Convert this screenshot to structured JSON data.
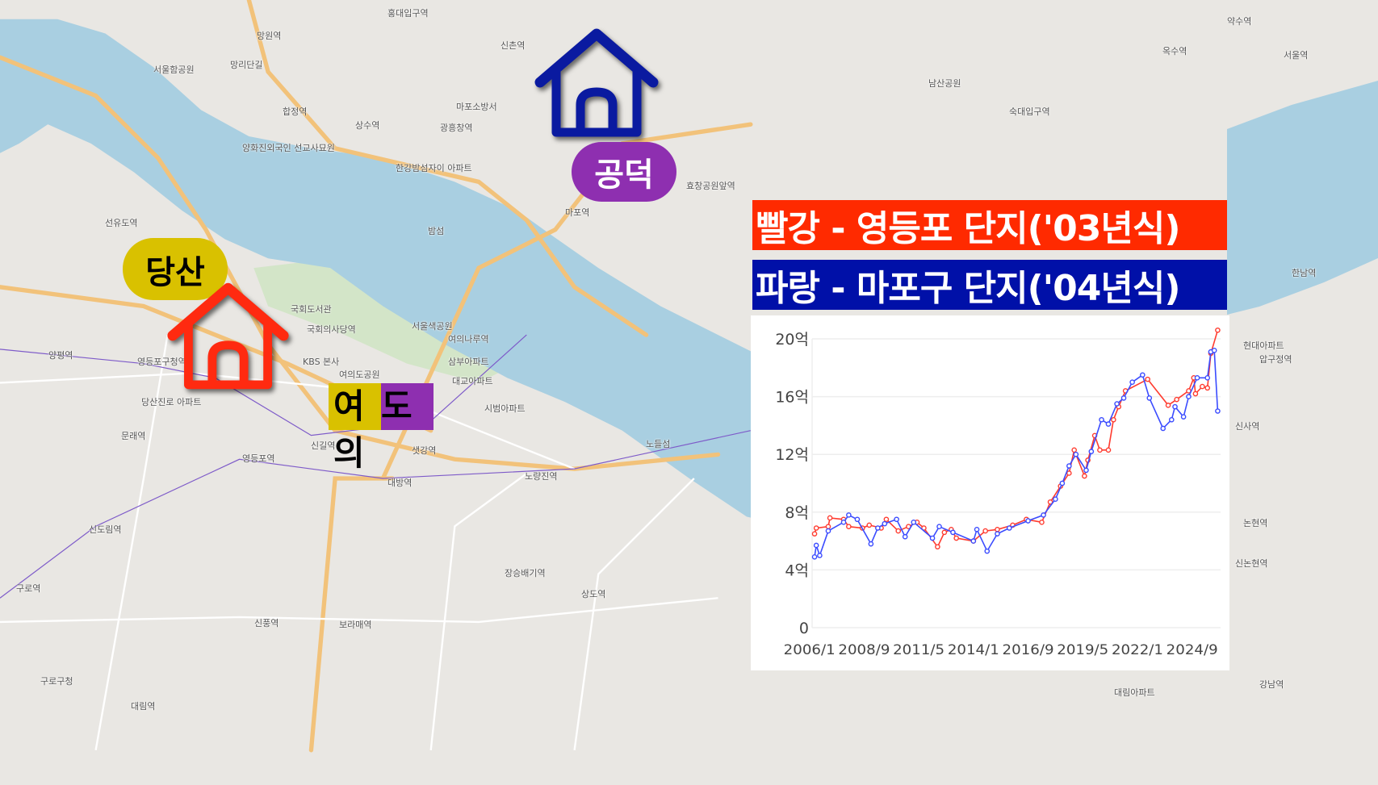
{
  "map": {
    "colors": {
      "land": "#e9e7e3",
      "river": "#a9cfe1",
      "park": "#cfe3c4",
      "road": "#f2c27a"
    },
    "labels": [
      {
        "text": "망원역"
      },
      {
        "text": "망리단길"
      },
      {
        "text": "서울함공원"
      },
      {
        "text": "합정역"
      },
      {
        "text": "상수역"
      },
      {
        "text": "광흥창역"
      },
      {
        "text": "마포소방서"
      },
      {
        "text": "양화진외국인 선교사묘원"
      },
      {
        "text": "한강밤섬자이 아파트"
      },
      {
        "text": "밤섬"
      },
      {
        "text": "국회도서관"
      },
      {
        "text": "국회의사당역"
      },
      {
        "text": "KBS 본사"
      },
      {
        "text": "여의도공원"
      },
      {
        "text": "서울색공원"
      },
      {
        "text": "여의나루역"
      },
      {
        "text": "마포역"
      },
      {
        "text": "삼부아파트"
      },
      {
        "text": "시범아파트"
      },
      {
        "text": "대교아파트"
      },
      {
        "text": "샛강역"
      },
      {
        "text": "신길역"
      },
      {
        "text": "영등포역"
      },
      {
        "text": "대방역"
      },
      {
        "text": "노량진역"
      },
      {
        "text": "신도림역"
      },
      {
        "text": "구로역"
      },
      {
        "text": "보라매역"
      },
      {
        "text": "신풍역"
      },
      {
        "text": "대림역"
      },
      {
        "text": "구로구청"
      },
      {
        "text": "노들섬"
      },
      {
        "text": "상도역"
      },
      {
        "text": "장승배기역"
      },
      {
        "text": "영등포구청역"
      },
      {
        "text": "양평역"
      },
      {
        "text": "선유도역"
      },
      {
        "text": "문래역"
      },
      {
        "text": "당산진로 아파트"
      },
      {
        "text": "대림아파트"
      },
      {
        "text": "효창공원앞역"
      },
      {
        "text": "홍대입구역"
      },
      {
        "text": "신촌역"
      },
      {
        "text": "숙대입구역"
      },
      {
        "text": "서울역"
      },
      {
        "text": "남산공원"
      },
      {
        "text": "한남역"
      },
      {
        "text": "옥수역"
      },
      {
        "text": "약수역"
      },
      {
        "text": "현대아파트"
      },
      {
        "text": "압구정역"
      },
      {
        "text": "신사역"
      },
      {
        "text": "논현역"
      },
      {
        "text": "신논현역"
      },
      {
        "text": "강남역"
      }
    ]
  },
  "markers": {
    "gongdeok": {
      "label": "공덕",
      "house_color": "#0a1aa0",
      "pill_color": "#8e2fb0",
      "text_color": "#ffffff",
      "icon": "house-icon"
    },
    "dangsan": {
      "label": "당산",
      "house_color": "#ff2a10",
      "pill_color": "#d9c100",
      "text_color": "#000000",
      "icon": "house-icon"
    },
    "yeouido": {
      "label_part1": "여의",
      "label_part2": "도",
      "color1": "#d9c100",
      "color2": "#8e2fb0",
      "text_color": "#000000"
    }
  },
  "legend": {
    "red": {
      "text": "빨강 - 영등포 단지('03년식)",
      "color": "#ff2a00"
    },
    "blue": {
      "text": "파랑 - 마포구 단지('04년식)",
      "color": "#0010a8"
    }
  },
  "chart_data": {
    "type": "line",
    "title": "",
    "xlabel": "",
    "ylabel": "",
    "x_ticks": [
      "2006/1",
      "2008/9",
      "2011/5",
      "2014/1",
      "2016/9",
      "2019/5",
      "2022/1",
      "2024/9"
    ],
    "y_ticks": [
      {
        "value": 0,
        "label": "0"
      },
      {
        "value": 4,
        "label": "4억"
      },
      {
        "value": 8,
        "label": "8억"
      },
      {
        "value": 12,
        "label": "12억"
      },
      {
        "value": 16,
        "label": "16억"
      },
      {
        "value": 20,
        "label": "20억"
      }
    ],
    "ylim": [
      0,
      20
    ],
    "y_unit": "억",
    "grid": "horizontal",
    "series": [
      {
        "color": "#ff3b2f",
        "points": [
          [
            "2006/4",
            6.5
          ],
          [
            "2006/5",
            6.9
          ],
          [
            "2006/12",
            7.0
          ],
          [
            "2007/1",
            7.6
          ],
          [
            "2007/9",
            7.5
          ],
          [
            "2007/12",
            7.0
          ],
          [
            "2008/8",
            6.9
          ],
          [
            "2008/12",
            7.1
          ],
          [
            "2009/7",
            6.9
          ],
          [
            "2009/10",
            7.5
          ],
          [
            "2010/5",
            6.7
          ],
          [
            "2010/11",
            7.0
          ],
          [
            "2011/4",
            7.3
          ],
          [
            "2011/8",
            6.9
          ],
          [
            "2012/4",
            5.6
          ],
          [
            "2012/8",
            6.6
          ],
          [
            "2012/12",
            6.8
          ],
          [
            "2013/3",
            6.2
          ],
          [
            "2014/1",
            6.0
          ],
          [
            "2014/8",
            6.7
          ],
          [
            "2015/3",
            6.8
          ],
          [
            "2015/12",
            7.1
          ],
          [
            "2016/8",
            7.5
          ],
          [
            "2017/5",
            7.3
          ],
          [
            "2017/10",
            8.7
          ],
          [
            "2018/4",
            9.8
          ],
          [
            "2018/9",
            10.7
          ],
          [
            "2018/12",
            12.3
          ],
          [
            "2019/6",
            10.5
          ],
          [
            "2019/8",
            11.6
          ],
          [
            "2019/12",
            13.3
          ],
          [
            "2020/3",
            12.3
          ],
          [
            "2020/8",
            12.3
          ],
          [
            "2020/11",
            14.4
          ],
          [
            "2021/2",
            15.3
          ],
          [
            "2021/6",
            16.4
          ],
          [
            "2022/7",
            17.2
          ],
          [
            "2023/7",
            15.4
          ],
          [
            "2023/12",
            15.8
          ],
          [
            "2024/7",
            16.4
          ],
          [
            "2024/10",
            17.3
          ],
          [
            "2024/11",
            16.2
          ],
          [
            "2025/3",
            16.7
          ],
          [
            "2025/6",
            16.6
          ],
          [
            "2025/8",
            19.0
          ],
          [
            "2025/12",
            20.6
          ]
        ]
      },
      {
        "color": "#3b4cff",
        "points": [
          [
            "2006/4",
            4.9
          ],
          [
            "2006/5",
            5.7
          ],
          [
            "2006/7",
            5.0
          ],
          [
            "2006/12",
            6.7
          ],
          [
            "2007/9",
            7.3
          ],
          [
            "2007/12",
            7.8
          ],
          [
            "2008/5",
            7.5
          ],
          [
            "2009/1",
            5.8
          ],
          [
            "2009/5",
            6.9
          ],
          [
            "2009/9",
            7.2
          ],
          [
            "2010/4",
            7.5
          ],
          [
            "2010/9",
            6.3
          ],
          [
            "2011/2",
            7.3
          ],
          [
            "2012/1",
            6.2
          ],
          [
            "2012/5",
            7.0
          ],
          [
            "2013/1",
            6.6
          ],
          [
            "2014/1",
            6.0
          ],
          [
            "2014/3",
            6.8
          ],
          [
            "2014/9",
            5.3
          ],
          [
            "2015/3",
            6.5
          ],
          [
            "2015/10",
            6.9
          ],
          [
            "2016/9",
            7.4
          ],
          [
            "2017/6",
            7.8
          ],
          [
            "2018/1",
            8.9
          ],
          [
            "2018/5",
            10.0
          ],
          [
            "2018/9",
            11.2
          ],
          [
            "2019/1",
            12.0
          ],
          [
            "2019/7",
            10.9
          ],
          [
            "2019/10",
            12.2
          ],
          [
            "2020/4",
            14.4
          ],
          [
            "2020/8",
            14.1
          ],
          [
            "2021/1",
            15.5
          ],
          [
            "2021/5",
            15.9
          ],
          [
            "2021/10",
            17.0
          ],
          [
            "2022/4",
            17.5
          ],
          [
            "2022/8",
            15.9
          ],
          [
            "2023/4",
            13.8
          ],
          [
            "2023/9",
            14.4
          ],
          [
            "2023/11",
            15.3
          ],
          [
            "2024/4",
            14.6
          ],
          [
            "2024/7",
            16.0
          ],
          [
            "2024/12",
            17.3
          ],
          [
            "2025/6",
            17.3
          ],
          [
            "2025/8",
            19.1
          ],
          [
            "2025/10",
            19.2
          ],
          [
            "2025/12",
            15.0
          ]
        ]
      }
    ]
  }
}
